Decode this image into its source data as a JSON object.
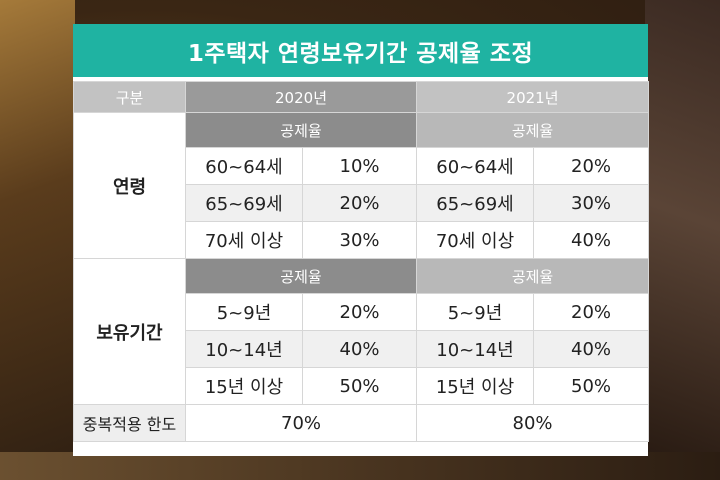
{
  "title": "1주택자 연령보유기간 공제율 조정",
  "header": {
    "category": "구분",
    "year_2020": "2020년",
    "year_2021": "2021년"
  },
  "deduction_rate_label": "공제율",
  "age_section": {
    "label": "연령",
    "rows": [
      {
        "range_2020": "60~64세",
        "rate_2020": "10%",
        "range_2021": "60~64세",
        "rate_2021": "20%"
      },
      {
        "range_2020": "65~69세",
        "rate_2020": "20%",
        "range_2021": "65~69세",
        "rate_2021": "30%"
      },
      {
        "range_2020": "70세 이상",
        "rate_2020": "30%",
        "range_2021": "70세 이상",
        "rate_2021": "40%"
      }
    ]
  },
  "holding_section": {
    "label": "보유기간",
    "rows": [
      {
        "range_2020": "5~9년",
        "rate_2020": "20%",
        "range_2021": "5~9년",
        "rate_2021": "20%"
      },
      {
        "range_2020": "10~14년",
        "rate_2020": "40%",
        "range_2021": "10~14년",
        "rate_2021": "40%"
      },
      {
        "range_2020": "15년 이상",
        "rate_2020": "50%",
        "range_2021": "15년 이상",
        "rate_2021": "50%"
      }
    ]
  },
  "limit_row": {
    "label": "중복적용 한도",
    "value_2020": "70%",
    "value_2021": "80%"
  },
  "colors": {
    "title_bg": "#1fb3a2",
    "header_dark": "#9a9a9a",
    "header_light": "#c2c2c2"
  }
}
